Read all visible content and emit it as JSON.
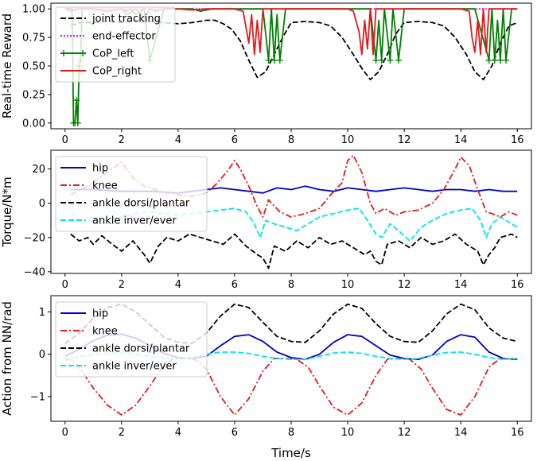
{
  "chart_data": [
    {
      "type": "line",
      "title": "",
      "xlabel": "",
      "ylabel": "Real-time Reward",
      "xlim": [
        -0.5,
        16.5
      ],
      "ylim": [
        -0.05,
        1.05
      ],
      "xticks": [
        "0",
        "2",
        "4",
        "6",
        "8",
        "10",
        "12",
        "14",
        "16"
      ],
      "yticks": [
        "0.00",
        "0.25",
        "0.50",
        "0.75",
        "1.00"
      ],
      "legend_position": "upper-left",
      "series": [
        {
          "name": "joint tracking",
          "color": "#000000",
          "style": "dashed",
          "x": [
            0.2,
            0.5,
            1.0,
            1.5,
            2.0,
            2.5,
            3.0,
            3.5,
            4.0,
            4.5,
            5.0,
            5.3,
            5.6,
            5.9,
            6.2,
            6.5,
            6.8,
            7.1,
            7.4,
            7.7,
            8.0,
            8.5,
            9.0,
            9.4,
            9.8,
            10.2,
            10.5,
            10.8,
            11.1,
            11.4,
            11.7,
            12.0,
            12.5,
            13.0,
            13.4,
            13.8,
            14.2,
            14.5,
            14.8,
            15.1,
            15.4,
            15.7,
            16.0
          ],
          "y": [
            0.85,
            0.88,
            0.88,
            0.89,
            0.88,
            0.9,
            0.89,
            0.88,
            0.87,
            0.88,
            0.9,
            0.9,
            0.87,
            0.82,
            0.72,
            0.55,
            0.4,
            0.45,
            0.6,
            0.75,
            0.88,
            0.89,
            0.88,
            0.85,
            0.75,
            0.6,
            0.48,
            0.38,
            0.45,
            0.6,
            0.78,
            0.88,
            0.89,
            0.88,
            0.85,
            0.75,
            0.6,
            0.45,
            0.38,
            0.5,
            0.7,
            0.85,
            0.88
          ]
        },
        {
          "name": "end-effector",
          "color": "#ff00ff",
          "style": "dotted",
          "x": [
            0.0,
            16.0
          ],
          "y": [
            1.0,
            1.0
          ]
        },
        {
          "name": "CoP_left",
          "color": "#008000",
          "style": "solid-plus",
          "x": [
            0.0,
            0.25,
            0.3,
            0.35,
            0.4,
            0.45,
            0.5,
            0.55,
            0.6,
            0.7,
            1.0,
            1.5,
            2.0,
            2.2,
            2.3,
            2.5,
            2.8,
            3.0,
            3.5,
            4.0,
            4.5,
            4.8,
            5.2,
            5.5,
            6.0,
            6.5,
            7.0,
            7.2,
            7.3,
            7.4,
            7.5,
            7.6,
            7.8,
            8.0,
            8.5,
            9.0,
            9.5,
            10.0,
            10.5,
            10.8,
            11.0,
            11.1,
            11.2,
            11.3,
            11.5,
            11.6,
            11.8,
            12.0,
            12.5,
            13.0,
            13.5,
            14.0,
            14.5,
            15.0,
            15.1,
            15.2,
            15.3,
            15.4,
            15.5,
            15.6,
            15.8,
            16.0
          ],
          "y": [
            1.0,
            1.0,
            0.0,
            0.0,
            0.2,
            0.0,
            0.5,
            0.55,
            1.0,
            1.0,
            1.0,
            0.98,
            1.0,
            0.98,
            1.0,
            0.95,
            1.0,
            0.55,
            1.0,
            1.0,
            1.0,
            0.98,
            1.0,
            1.0,
            1.0,
            1.0,
            1.0,
            0.55,
            1.0,
            0.55,
            0.95,
            0.55,
            1.0,
            1.0,
            1.0,
            1.0,
            1.0,
            1.0,
            1.0,
            1.0,
            0.55,
            0.9,
            0.55,
            1.0,
            0.55,
            1.0,
            0.55,
            1.0,
            1.0,
            1.0,
            1.0,
            1.0,
            1.0,
            0.55,
            1.0,
            0.55,
            0.9,
            0.55,
            1.0,
            0.55,
            1.0,
            1.0
          ]
        },
        {
          "name": "CoP_right",
          "color": "#e31a1c",
          "style": "solid",
          "x": [
            0.0,
            0.2,
            0.5,
            0.8,
            1.0,
            1.5,
            2.0,
            2.2,
            2.5,
            2.8,
            3.0,
            3.2,
            3.5,
            4.0,
            4.5,
            5.0,
            5.5,
            6.0,
            6.3,
            6.5,
            6.6,
            6.7,
            6.8,
            6.9,
            7.0,
            7.5,
            8.0,
            8.5,
            9.0,
            9.5,
            10.0,
            10.2,
            10.4,
            10.5,
            10.6,
            10.7,
            10.8,
            10.9,
            11.0,
            11.5,
            12.0,
            12.5,
            13.0,
            13.5,
            14.0,
            14.3,
            14.4,
            14.5,
            14.6,
            14.7,
            14.8,
            14.9,
            15.0,
            15.5,
            16.0
          ],
          "y": [
            1.0,
            0.98,
            1.0,
            1.0,
            1.0,
            0.98,
            1.0,
            0.95,
            1.0,
            0.92,
            1.0,
            0.98,
            1.0,
            1.0,
            0.99,
            1.0,
            1.0,
            1.0,
            0.98,
            0.7,
            0.95,
            0.6,
            0.9,
            0.62,
            1.0,
            1.0,
            1.0,
            1.0,
            1.0,
            1.0,
            1.0,
            0.98,
            0.8,
            0.6,
            0.9,
            0.65,
            1.0,
            0.6,
            1.0,
            1.0,
            1.0,
            1.0,
            1.0,
            1.0,
            1.0,
            0.98,
            0.75,
            0.62,
            0.9,
            0.6,
            1.0,
            0.62,
            1.0,
            1.0,
            1.0
          ]
        }
      ]
    },
    {
      "type": "line",
      "title": "",
      "xlabel": "",
      "ylabel": "Torque/N*m",
      "xlim": [
        -0.5,
        16.5
      ],
      "ylim": [
        -41,
        31
      ],
      "xticks": [
        "0",
        "2",
        "4",
        "6",
        "8",
        "10",
        "12",
        "14",
        "16"
      ],
      "yticks": [
        "−40",
        "−20",
        "0",
        "20"
      ],
      "legend_position": "upper-left",
      "series": [
        {
          "name": "hip",
          "color": "#0000cd",
          "style": "solid",
          "x": [
            0.2,
            1.0,
            2.0,
            3.0,
            4.0,
            5.0,
            5.5,
            6.0,
            6.5,
            7.0,
            7.5,
            8.0,
            8.5,
            9.0,
            9.5,
            10.0,
            10.5,
            11.0,
            11.5,
            12.0,
            12.5,
            13.0,
            13.5,
            14.0,
            14.5,
            15.0,
            15.5,
            16.0
          ],
          "y": [
            8,
            8,
            7,
            7,
            6,
            8,
            9,
            8,
            7,
            6,
            9,
            8,
            10,
            8,
            7,
            9,
            8,
            7,
            8,
            9,
            8,
            7,
            8,
            8,
            7,
            8,
            7,
            7
          ]
        },
        {
          "name": "knee",
          "color": "#e31a1c",
          "style": "dashdot",
          "x": [
            0.2,
            0.8,
            1.5,
            2.0,
            2.4,
            2.8,
            3.2,
            3.6,
            4.0,
            4.5,
            5.0,
            5.4,
            5.8,
            6.0,
            6.2,
            6.5,
            6.8,
            7.0,
            7.2,
            7.6,
            8.0,
            8.5,
            9.0,
            9.4,
            9.8,
            10.0,
            10.2,
            10.5,
            10.8,
            11.0,
            11.3,
            11.7,
            12.0,
            12.5,
            13.0,
            13.4,
            13.8,
            14.0,
            14.3,
            14.6,
            14.9,
            15.1,
            15.4,
            15.7,
            16.0
          ],
          "y": [
            5,
            10,
            18,
            24,
            15,
            10,
            8,
            6,
            5,
            4,
            6,
            12,
            20,
            25,
            20,
            10,
            -2,
            -8,
            2,
            -5,
            -8,
            -6,
            -3,
            5,
            12,
            25,
            28,
            18,
            0,
            -6,
            -3,
            -7,
            -5,
            -4,
            0,
            8,
            20,
            27,
            22,
            8,
            -5,
            -6,
            -8,
            -5,
            -7
          ]
        },
        {
          "name": "ankle dorsi/plantar",
          "color": "#000000",
          "style": "dashed",
          "x": [
            0.2,
            0.5,
            0.8,
            1.0,
            1.3,
            1.6,
            2.0,
            2.4,
            2.8,
            3.0,
            3.3,
            3.6,
            4.0,
            4.4,
            4.8,
            5.2,
            5.6,
            6.0,
            6.4,
            6.8,
            7.0,
            7.2,
            7.4,
            7.8,
            8.2,
            8.6,
            9.0,
            9.4,
            9.8,
            10.2,
            10.6,
            10.8,
            11.0,
            11.2,
            11.4,
            11.8,
            12.2,
            12.6,
            13.0,
            13.4,
            13.8,
            14.2,
            14.6,
            14.8,
            15.0,
            15.2,
            15.4,
            15.8,
            16.0
          ],
          "y": [
            -18,
            -22,
            -20,
            -24,
            -19,
            -23,
            -28,
            -22,
            -30,
            -35,
            -25,
            -20,
            -22,
            -18,
            -20,
            -22,
            -24,
            -18,
            -25,
            -30,
            -32,
            -38,
            -25,
            -28,
            -22,
            -26,
            -20,
            -24,
            -22,
            -26,
            -30,
            -28,
            -34,
            -36,
            -24,
            -22,
            -26,
            -20,
            -24,
            -22,
            -18,
            -24,
            -28,
            -36,
            -30,
            -26,
            -20,
            -18,
            -20
          ]
        },
        {
          "name": "ankle inver/ever",
          "color": "#00e5ee",
          "style": "dashed",
          "x": [
            0.2,
            0.6,
            1.0,
            1.5,
            2.0,
            2.5,
            3.0,
            3.5,
            4.0,
            4.5,
            5.0,
            5.5,
            6.0,
            6.4,
            6.7,
            6.9,
            7.1,
            7.4,
            7.8,
            8.2,
            8.6,
            9.0,
            9.5,
            10.0,
            10.4,
            10.7,
            11.0,
            11.2,
            11.5,
            11.8,
            12.2,
            12.6,
            13.0,
            13.5,
            14.0,
            14.4,
            14.7,
            14.9,
            15.1,
            15.4,
            15.8,
            16.0
          ],
          "y": [
            -5,
            -12,
            -8,
            -10,
            -8,
            -6,
            -5,
            -6,
            -7,
            -6,
            -5,
            -4,
            -3,
            -5,
            -12,
            -20,
            -10,
            -12,
            -14,
            -16,
            -12,
            -8,
            -6,
            -4,
            -3,
            -10,
            -18,
            -20,
            -12,
            -16,
            -22,
            -14,
            -10,
            -6,
            -4,
            -3,
            -10,
            -20,
            -12,
            -8,
            -12,
            -14
          ]
        }
      ]
    },
    {
      "type": "line",
      "title": "",
      "xlabel": "Time/s",
      "ylabel": "Action from NN/rad",
      "xlim": [
        -0.5,
        16.5
      ],
      "ylim": [
        -1.58,
        1.38
      ],
      "xticks": [
        "0",
        "2",
        "4",
        "6",
        "8",
        "10",
        "12",
        "14",
        "16"
      ],
      "yticks": [
        "−1",
        "0",
        "1"
      ],
      "legend_position": "upper-left",
      "series": [
        {
          "name": "hip",
          "color": "#0000cd",
          "style": "solid",
          "x": [
            0,
            0.5,
            1.0,
            1.5,
            2.0,
            2.5,
            3.0,
            3.5,
            4.0,
            4.5,
            5.0,
            5.5,
            6.0,
            6.5,
            7.0,
            7.5,
            8.0,
            8.5,
            9.0,
            9.5,
            10.0,
            10.5,
            11.0,
            11.5,
            12.0,
            12.5,
            13.0,
            13.5,
            14.0,
            14.5,
            15.0,
            15.5,
            16.0
          ],
          "y": [
            -0.05,
            0.12,
            0.32,
            0.45,
            0.47,
            0.38,
            0.2,
            0.02,
            -0.08,
            -0.1,
            -0.05,
            0.2,
            0.42,
            0.46,
            0.3,
            0.05,
            -0.08,
            -0.12,
            0.0,
            0.28,
            0.46,
            0.42,
            0.2,
            -0.02,
            -0.1,
            -0.12,
            -0.02,
            0.3,
            0.46,
            0.4,
            0.05,
            -0.1,
            -0.12
          ]
        },
        {
          "name": "knee",
          "color": "#e31a1c",
          "style": "dashdot",
          "x": [
            0,
            0.3,
            0.6,
            1.0,
            1.5,
            2.0,
            2.5,
            3.0,
            3.4,
            3.8,
            4.2,
            4.6,
            5.0,
            5.5,
            6.0,
            6.5,
            7.0,
            7.4,
            7.8,
            8.2,
            8.6,
            9.0,
            9.5,
            10.0,
            10.5,
            11.0,
            11.4,
            11.8,
            12.2,
            12.6,
            13.0,
            13.5,
            14.0,
            14.5,
            15.0,
            15.4,
            15.8,
            16.0
          ],
          "y": [
            -0.1,
            -0.15,
            -0.4,
            -0.8,
            -1.2,
            -1.43,
            -1.2,
            -0.75,
            -0.35,
            -0.12,
            -0.1,
            -0.12,
            -0.35,
            -1.0,
            -1.43,
            -1.05,
            -0.4,
            -0.1,
            -0.1,
            -0.12,
            -0.3,
            -0.75,
            -1.25,
            -1.43,
            -1.15,
            -0.5,
            -0.12,
            -0.1,
            -0.12,
            -0.35,
            -0.8,
            -1.3,
            -1.43,
            -1.0,
            -0.3,
            -0.1,
            -0.12,
            -0.1
          ]
        },
        {
          "name": "ankle dorsi/plantar",
          "color": "#000000",
          "style": "dashed",
          "x": [
            0,
            0.5,
            1.0,
            1.5,
            2.0,
            2.5,
            3.0,
            3.5,
            4.0,
            4.5,
            5.0,
            5.5,
            6.0,
            6.5,
            7.0,
            7.5,
            8.0,
            8.5,
            9.0,
            9.5,
            10.0,
            10.5,
            11.0,
            11.5,
            12.0,
            12.5,
            13.0,
            13.5,
            14.0,
            14.5,
            15.0,
            15.5,
            16.0
          ],
          "y": [
            0.25,
            0.5,
            0.85,
            1.1,
            1.18,
            1.0,
            0.7,
            0.4,
            0.28,
            0.26,
            0.5,
            0.9,
            1.18,
            1.1,
            0.75,
            0.42,
            0.3,
            0.28,
            0.55,
            0.95,
            1.18,
            1.08,
            0.72,
            0.42,
            0.3,
            0.28,
            0.55,
            0.95,
            1.18,
            1.05,
            0.62,
            0.38,
            0.3
          ]
        },
        {
          "name": "ankle inver/ever",
          "color": "#00e5ee",
          "style": "dashed",
          "x": [
            0,
            0.5,
            1.0,
            1.5,
            2.0,
            2.5,
            3.0,
            3.5,
            4.0,
            4.5,
            5.0,
            5.5,
            6.0,
            6.5,
            7.0,
            7.5,
            8.0,
            8.5,
            9.0,
            9.5,
            10.0,
            10.5,
            11.0,
            11.5,
            12.0,
            12.5,
            13.0,
            13.5,
            14.0,
            14.5,
            15.0,
            15.5,
            16.0
          ],
          "y": [
            -0.15,
            -0.05,
            0.0,
            0.02,
            0.05,
            0.0,
            -0.05,
            -0.1,
            -0.1,
            -0.08,
            0.0,
            0.05,
            0.05,
            0.02,
            -0.05,
            -0.1,
            -0.12,
            -0.12,
            -0.05,
            0.03,
            0.05,
            0.02,
            -0.05,
            -0.1,
            -0.12,
            -0.1,
            -0.02,
            0.04,
            0.05,
            0.0,
            -0.08,
            -0.12,
            -0.1
          ]
        }
      ]
    }
  ]
}
